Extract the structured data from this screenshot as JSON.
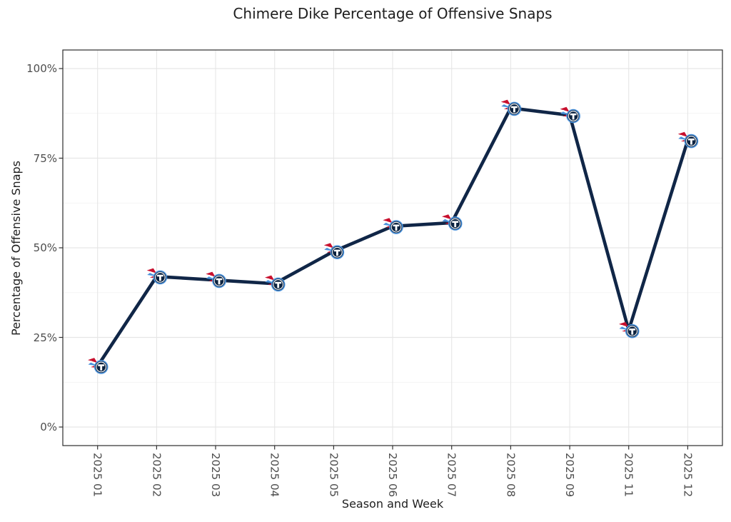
{
  "chart_data": {
    "type": "line",
    "title": "Chimere Dike Percentage of Offensive Snaps",
    "xlabel": "Season and Week",
    "ylabel": "Percentage of Offensive Snaps",
    "categories": [
      "2025 01",
      "2025 02",
      "2025 03",
      "2025 04",
      "2025 05",
      "2025 06",
      "2025 07",
      "2025 08",
      "2025 09",
      "2025 11",
      "2025 12"
    ],
    "values": [
      17,
      42,
      41,
      40,
      49,
      56,
      57,
      89,
      87,
      27,
      80
    ],
    "units": "%",
    "y_axis": {
      "tick_values": [
        0,
        25,
        50,
        75,
        100
      ],
      "tick_labels": [
        "0%",
        "25%",
        "50%",
        "75%",
        "100%"
      ],
      "minor_tick_values": [
        12.5,
        37.5,
        62.5,
        87.5
      ],
      "range": [
        0,
        100
      ]
    },
    "legend": "none",
    "grid": "major-and-minor",
    "marker": "tennessee-titans-team-logo",
    "colors": {
      "line": "#102647",
      "grid_major": "#E6E6E6",
      "grid_minor": "#F2F2F2",
      "panel_border": "#2D2D2D",
      "tick_mark": "#333333",
      "tick_label": "#4D4D4D",
      "title": "#1E1E1E",
      "logo_navy": "#0C2340",
      "logo_light_blue": "#4B92DB",
      "logo_red": "#C8102E"
    }
  }
}
